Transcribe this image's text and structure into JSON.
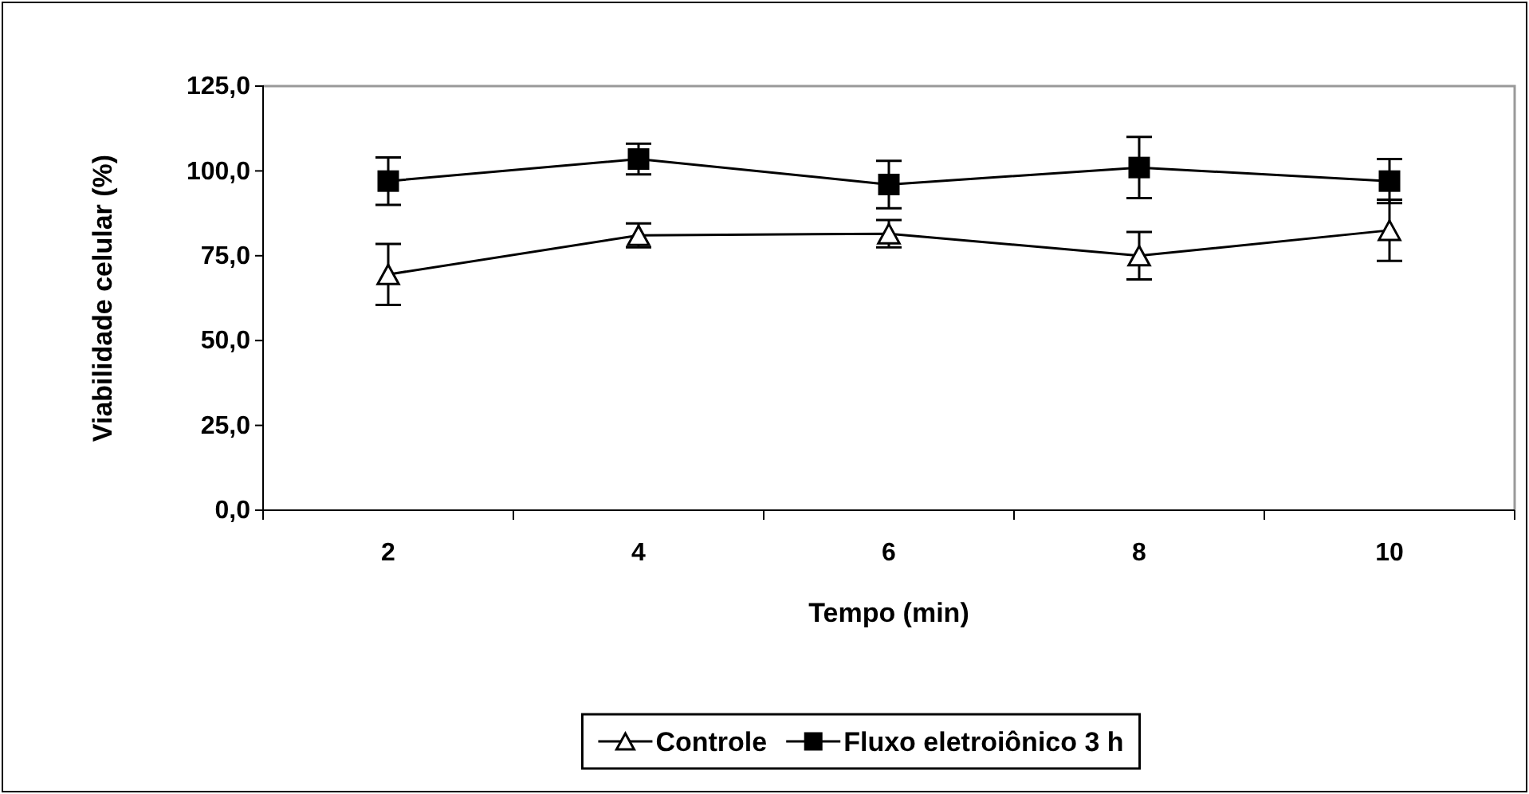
{
  "chart_data": {
    "type": "line",
    "xlabel": "Tempo (min)",
    "ylabel": "Viabilidade celular (%)",
    "categories": [
      "2",
      "4",
      "6",
      "8",
      "10"
    ],
    "ylim": [
      0,
      125
    ],
    "yticks": [
      {
        "value": 0,
        "label": "0,0"
      },
      {
        "value": 25,
        "label": "25,0"
      },
      {
        "value": 50,
        "label": "50,0"
      },
      {
        "value": 75,
        "label": "75,0"
      },
      {
        "value": 100,
        "label": "100,0"
      },
      {
        "value": 125,
        "label": "125,0"
      }
    ],
    "grid": false,
    "legend": "bottom",
    "series": [
      {
        "name": "Controle",
        "color": "#000000",
        "marker": "triangle",
        "values": [
          69.5,
          81,
          81.5,
          75,
          82.5
        ],
        "errors": [
          9,
          3.5,
          4,
          7,
          9
        ]
      },
      {
        "name": "Fluxo eletroiônico 3 h",
        "color": "#000000",
        "marker": "square",
        "values": [
          97,
          103.5,
          96,
          101,
          97
        ],
        "errors": [
          7,
          4.5,
          7,
          9,
          6.5
        ]
      }
    ]
  }
}
